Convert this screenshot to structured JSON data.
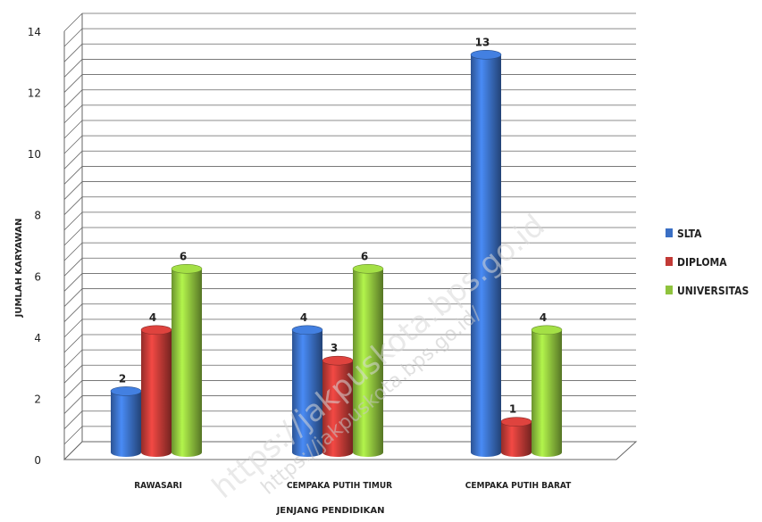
{
  "chart_data": {
    "type": "bar",
    "style": "3d-cylinder",
    "categories": [
      "RAWASARI",
      "CEMPAKA PUTIH TIMUR",
      "CEMPAKA PUTIH BARAT"
    ],
    "series": [
      {
        "name": "SLTA",
        "values": [
          2,
          4,
          13
        ],
        "color": "#3a6fc4"
      },
      {
        "name": "DIPLOMA",
        "values": [
          4,
          3,
          1
        ],
        "color": "#c23a36"
      },
      {
        "name": "UNIVERSITAS",
        "values": [
          6,
          6,
          4
        ],
        "color": "#8fc33d"
      }
    ],
    "xlabel": "JENJANG PENDIDIKAN",
    "ylabel": "JUMLAH KARYAWAN",
    "ylim": [
      0,
      14
    ],
    "yticks": [
      0,
      2,
      4,
      6,
      8,
      10,
      12,
      14
    ],
    "grid": true,
    "legend_position": "right"
  },
  "watermark": {
    "text_large": "https://jakpuskota.bps.go.id",
    "text_small": "https://jakpuskota.bps.go.id/"
  }
}
